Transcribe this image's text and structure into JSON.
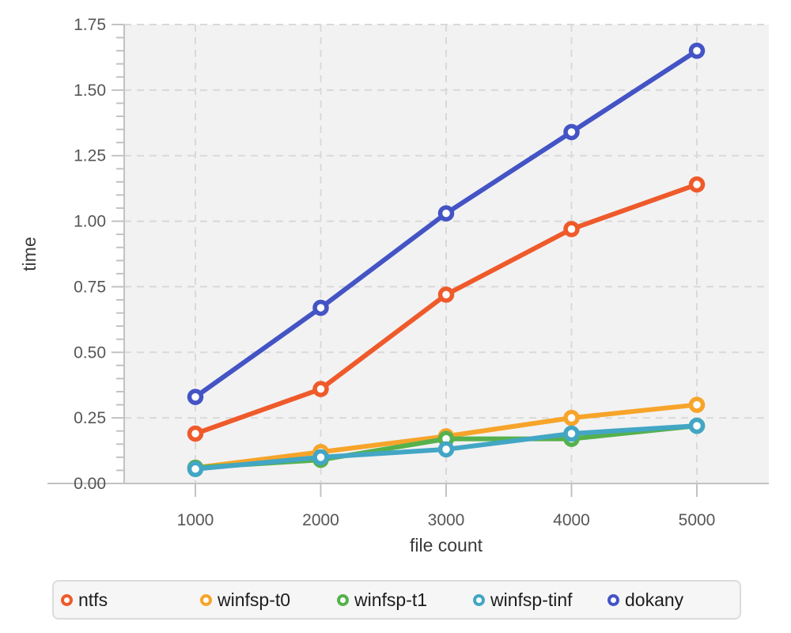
{
  "chart_data": {
    "type": "line",
    "title": "",
    "xlabel": "file count",
    "ylabel": "time",
    "x": [
      1000,
      2000,
      3000,
      4000,
      5000
    ],
    "x_tick_labels": [
      "1000",
      "2000",
      "3000",
      "4000",
      "5000"
    ],
    "y_tick_values": [
      0,
      0.25,
      0.5,
      0.75,
      1.0,
      1.25,
      1.5,
      1.75
    ],
    "y_tick_labels": [
      "0.00",
      "0.25",
      "0.50",
      "0.75",
      "1.00",
      "1.25",
      "1.50",
      "1.75"
    ],
    "y_minor_step": 0.05,
    "ylim": [
      0,
      1.75
    ],
    "grid": true,
    "legend_position": "bottom",
    "series": [
      {
        "name": "ntfs",
        "color": "#ef5a2b",
        "values": [
          0.19,
          0.36,
          0.72,
          0.97,
          1.14
        ]
      },
      {
        "name": "winfsp-t0",
        "color": "#f7a42a",
        "values": [
          0.06,
          0.12,
          0.18,
          0.25,
          0.3
        ]
      },
      {
        "name": "winfsp-t1",
        "color": "#56b14c",
        "values": [
          0.06,
          0.09,
          0.17,
          0.17,
          0.22
        ]
      },
      {
        "name": "winfsp-tinf",
        "color": "#42a6c4",
        "values": [
          0.055,
          0.1,
          0.13,
          0.19,
          0.22
        ]
      },
      {
        "name": "dokany",
        "color": "#4454c5",
        "values": [
          0.33,
          0.67,
          1.03,
          1.34,
          1.65
        ]
      }
    ]
  },
  "style": {
    "plot_bg": "#f2f2f3",
    "grid_color": "#d9d9d9",
    "axis_color": "#c2c2c2",
    "tick_label_color": "#565656",
    "axis_title_color": "#3a3a3a",
    "marker_fill": "#ffffff",
    "legend_bg": "#f6f6f6",
    "legend_border": "#dcdcdc",
    "legend_text": "#1d1d1d"
  }
}
